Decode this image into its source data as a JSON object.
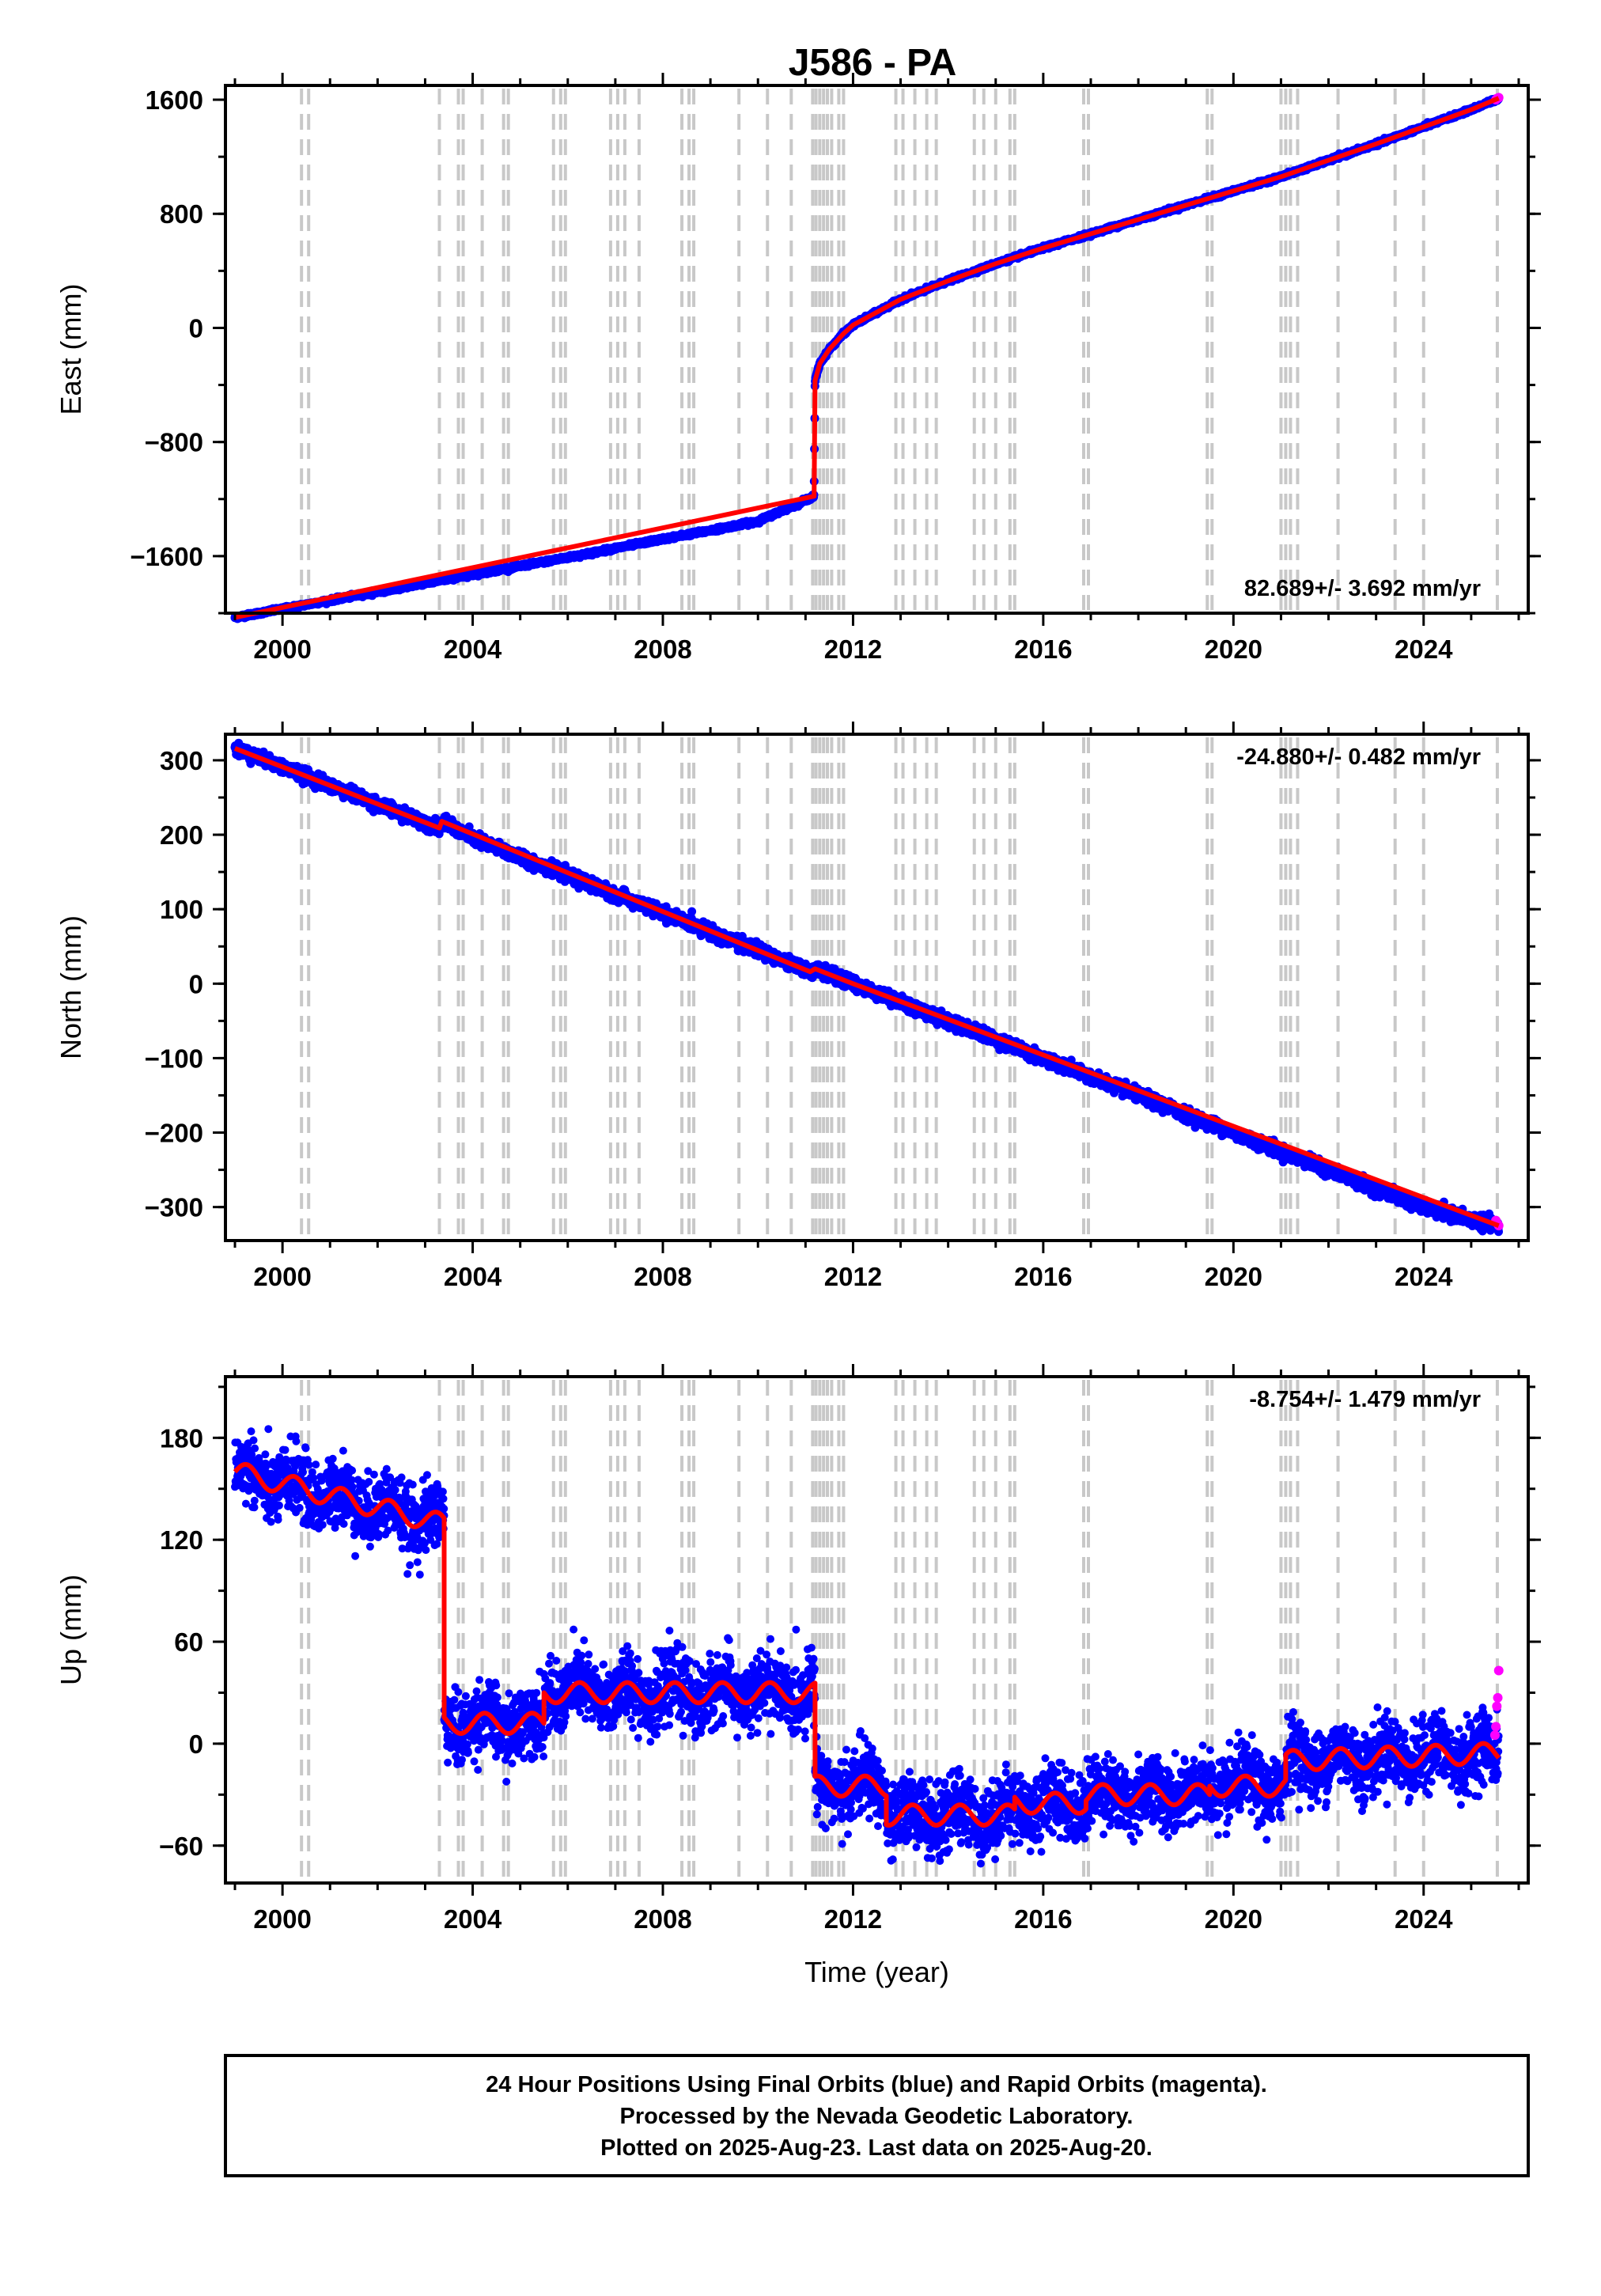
{
  "title": "J586 - PA",
  "footer": {
    "lines": [
      "24 Hour Positions Using Final Orbits (blue) and Rapid Orbits (magenta).",
      "Processed by the Nevada Geodetic Laboratory.",
      "Plotted on 2025-Aug-23. Last data on 2025-Aug-20."
    ]
  },
  "colors": {
    "final_orbits": "#0000ff",
    "rapid_orbits": "#ff00ff",
    "model_fit": "#ff0000",
    "event_lines": "#c8c8c8",
    "axes": "#000000"
  },
  "chart_data": [
    {
      "type": "scatter",
      "name": "east",
      "ylabel": "East (mm)",
      "xlabel": "",
      "xlim": [
        1998.8,
        2026.2
      ],
      "ylim": [
        -2000,
        1700
      ],
      "xticks": [
        2000,
        2004,
        2008,
        2012,
        2016,
        2020,
        2024
      ],
      "yticks": [
        -1600,
        -800,
        0,
        800,
        1600
      ],
      "rate_label": "82.689+/- 3.692 mm/yr",
      "rate_position": "bottom-right",
      "grid": false,
      "series": [
        {
          "name": "final",
          "x": [
            1999.0,
            2000.0,
            2001.0,
            2002.0,
            2003.0,
            2004.0,
            2005.0,
            2006.0,
            2007.0,
            2008.0,
            2009.0,
            2010.0,
            2011.18,
            2011.2,
            2011.3,
            2011.5,
            2011.8,
            2012.0,
            2012.5,
            2013.0,
            2014.0,
            2015.0,
            2016.0,
            2017.0,
            2018.0,
            2019.0,
            2020.0,
            2021.0,
            2022.0,
            2023.0,
            2024.0,
            2025.0,
            2025.58
          ],
          "y": [
            -2030,
            -1970,
            -1910,
            -1850,
            -1790,
            -1730,
            -1670,
            -1610,
            -1545,
            -1480,
            -1420,
            -1355,
            -1180,
            -370,
            -250,
            -150,
            -40,
            20,
            110,
            200,
            330,
            450,
            560,
            660,
            760,
            860,
            960,
            1060,
            1175,
            1290,
            1410,
            1530,
            1610
          ]
        },
        {
          "name": "rapid",
          "x": [
            2025.52,
            2025.55,
            2025.58
          ],
          "y": [
            1600,
            1610,
            1615
          ]
        },
        {
          "name": "model",
          "x": [
            1999.0,
            2011.18,
            2011.2,
            2011.3,
            2011.5,
            2011.8,
            2012.0,
            2012.5,
            2013.0,
            2014.0,
            2015.0,
            2016.0,
            2017.0,
            2018.0,
            2019.0,
            2020.0,
            2021.0,
            2022.0,
            2023.0,
            2024.0,
            2025.0,
            2025.58
          ],
          "y": [
            -2030,
            -1180,
            -370,
            -250,
            -150,
            -40,
            20,
            110,
            200,
            330,
            450,
            560,
            660,
            760,
            860,
            960,
            1060,
            1175,
            1290,
            1410,
            1530,
            1610
          ]
        }
      ]
    },
    {
      "type": "scatter",
      "name": "north",
      "ylabel": "North (mm)",
      "xlabel": "",
      "xlim": [
        1998.8,
        2026.2
      ],
      "ylim": [
        -345,
        335
      ],
      "xticks": [
        2000,
        2004,
        2008,
        2012,
        2016,
        2020,
        2024
      ],
      "yticks": [
        -300,
        -200,
        -100,
        0,
        100,
        200,
        300
      ],
      "rate_label": "-24.880+/- 0.482 mm/yr",
      "rate_position": "top-right",
      "grid": false,
      "series": [
        {
          "name": "final",
          "x": [
            1999.0,
            2000.0,
            2001.0,
            2002.0,
            2003.3,
            2003.35,
            2004.0,
            2005.0,
            2006.0,
            2007.0,
            2008.0,
            2009.0,
            2010.0,
            2011.1,
            2011.2,
            2012.0,
            2013.0,
            2014.0,
            2015.0,
            2016.0,
            2017.0,
            2018.0,
            2019.0,
            2020.0,
            2021.0,
            2022.0,
            2023.0,
            2024.0,
            2025.0,
            2025.58
          ],
          "y": [
            316,
            291,
            266,
            241,
            209,
            218,
            195,
            170,
            145,
            120,
            95,
            70,
            45,
            16,
            20,
            0,
            -25,
            -50,
            -75,
            -100,
            -125,
            -150,
            -175,
            -200,
            -225,
            -250,
            -275,
            -300,
            -317,
            -325
          ]
        },
        {
          "name": "rapid",
          "x": [
            2025.52,
            2025.55,
            2025.58
          ],
          "y": [
            -318,
            -322,
            -325
          ]
        },
        {
          "name": "model",
          "x": [
            1999.0,
            2003.3,
            2003.35,
            2011.1,
            2011.2,
            2012.0,
            2025.58
          ],
          "y": [
            316,
            209,
            218,
            16,
            20,
            0,
            -325
          ]
        }
      ]
    },
    {
      "type": "scatter",
      "name": "up",
      "ylabel": "Up (mm)",
      "xlabel": "Time (year)",
      "xlim": [
        1998.8,
        2026.2
      ],
      "ylim": [
        -82,
        216
      ],
      "xticks": [
        2000,
        2004,
        2008,
        2012,
        2016,
        2020,
        2024
      ],
      "yticks": [
        -60,
        0,
        60,
        120,
        180
      ],
      "rate_label": "-8.754+/- 1.479 mm/yr",
      "rate_position": "top-right",
      "grid": false,
      "segments": [
        {
          "from": 1999.0,
          "to": 2003.4,
          "mean": 160,
          "trend_per_yr": -7,
          "seasonal_amp": 6
        },
        {
          "from": 2003.4,
          "to": 2005.5,
          "mean": 12,
          "trend_per_yr": 0,
          "seasonal_amp": 6
        },
        {
          "from": 2005.5,
          "to": 2011.2,
          "mean": 30,
          "trend_per_yr": 0,
          "seasonal_amp": 6
        },
        {
          "from": 2011.2,
          "to": 2012.7,
          "mean": -25,
          "trend_per_yr": 0,
          "seasonal_amp": 6
        },
        {
          "from": 2012.7,
          "to": 2015.4,
          "mean": -42,
          "trend_per_yr": 0,
          "seasonal_amp": 6
        },
        {
          "from": 2015.4,
          "to": 2016.9,
          "mean": -35,
          "trend_per_yr": 0,
          "seasonal_amp": 6
        },
        {
          "from": 2016.9,
          "to": 2019.5,
          "mean": -30,
          "trend_per_yr": 0,
          "seasonal_amp": 6
        },
        {
          "from": 2019.5,
          "to": 2021.1,
          "mean": -25,
          "trend_per_yr": 0,
          "seasonal_amp": 6
        },
        {
          "from": 2021.1,
          "to": 2025.58,
          "mean": -10,
          "trend_per_yr": 1,
          "seasonal_amp": 6
        }
      ],
      "noise_mm": 10,
      "series": [
        {
          "name": "rapid",
          "x": [
            2025.5,
            2025.52,
            2025.54,
            2025.56,
            2025.58
          ],
          "y": [
            5,
            10,
            22,
            27,
            43
          ]
        }
      ]
    }
  ],
  "event_lines_x": [
    2000.4,
    2000.55,
    2003.3,
    2003.7,
    2003.8,
    2004.2,
    2004.65,
    2004.75,
    2005.7,
    2005.85,
    2005.95,
    2006.9,
    2007.05,
    2007.2,
    2007.5,
    2008.4,
    2008.55,
    2008.65,
    2009.6,
    2010.2,
    2010.7,
    2011.15,
    2011.22,
    2011.3,
    2011.38,
    2011.46,
    2011.55,
    2011.7,
    2011.8,
    2012.9,
    2013.05,
    2013.3,
    2013.55,
    2013.75,
    2014.55,
    2014.75,
    2015.0,
    2015.3,
    2015.4,
    2016.85,
    2016.95,
    2019.45,
    2019.55,
    2021.0,
    2021.1,
    2021.2,
    2021.35,
    2022.2,
    2023.4,
    2024.0,
    2025.55
  ]
}
